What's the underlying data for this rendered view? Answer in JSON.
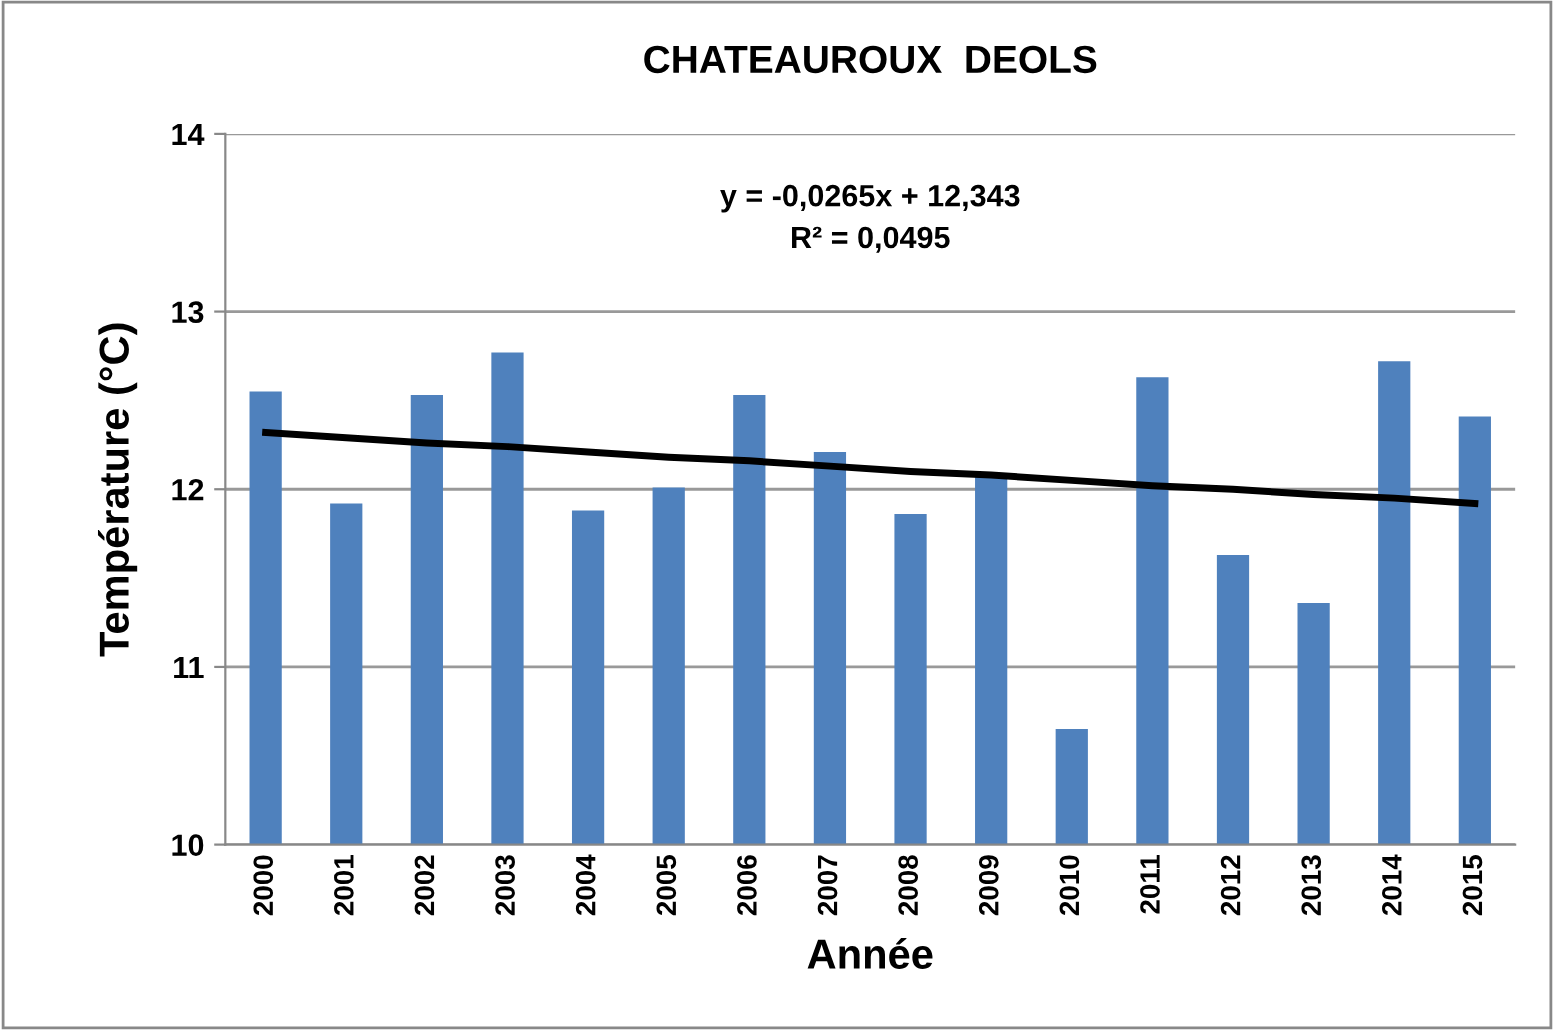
{
  "chart_data": {
    "type": "bar",
    "title": "CHATEAUROUX  DEOLS",
    "xlabel": "Année",
    "ylabel": "Température (°C)",
    "categories": [
      "2000",
      "2001",
      "2002",
      "2003",
      "2004",
      "2005",
      "2006",
      "2007",
      "2008",
      "2009",
      "2010",
      "2011",
      "2012",
      "2013",
      "2014",
      "2015"
    ],
    "series": [
      {
        "color": "#4f81bd",
        "values": [
          12.55,
          11.92,
          12.53,
          12.77,
          11.88,
          12.01,
          12.53,
          12.21,
          11.86,
          12.09,
          10.65,
          12.63,
          11.63,
          11.36,
          12.72,
          12.41
        ]
      },
      {
        "type": "line",
        "color": "#000000",
        "values": [
          12.32,
          12.29,
          12.26,
          12.24,
          12.21,
          12.18,
          12.16,
          12.13,
          12.1,
          12.08,
          12.05,
          12.02,
          12.0,
          11.97,
          11.95,
          11.92
        ]
      }
    ],
    "ylim": [
      10,
      14
    ],
    "yticks": [
      10,
      11,
      12,
      13,
      14
    ],
    "grid": "y",
    "legend": false,
    "annotations": [
      "y = -0,0265x + 12,343\nR² = 0,0495"
    ]
  }
}
